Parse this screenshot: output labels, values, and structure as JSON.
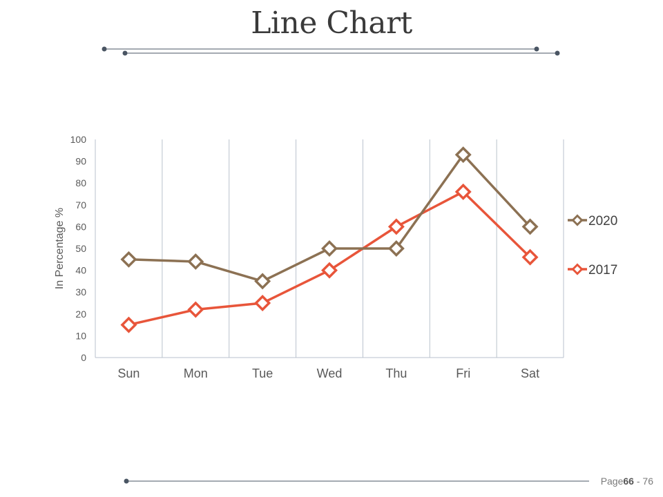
{
  "slide": {
    "title": "Line Chart"
  },
  "footer": {
    "page_label": "Page",
    "page_number": "66",
    "separator": " - ",
    "total_pages": "76"
  },
  "colors": {
    "series_2020": "#8c7153",
    "series_2017": "#e8553a",
    "decor_line": "#4a5563",
    "grid": "#b9c2cc",
    "axis_text": "#595959"
  },
  "chart_data": {
    "type": "line",
    "title": "",
    "xlabel": "",
    "ylabel": "In Percentage %",
    "categories": [
      "Sun",
      "Mon",
      "Tue",
      "Wed",
      "Thu",
      "Fri",
      "Sat"
    ],
    "ylim": [
      0,
      100
    ],
    "yticks": [
      "0",
      "10",
      "20",
      "30",
      "40",
      "50",
      "60",
      "70",
      "80",
      "90",
      "100"
    ],
    "vertical_gridlines": true,
    "legend_position": "right",
    "marker": "diamond",
    "series": [
      {
        "name": "2020",
        "color": "#8c7153",
        "values": [
          45,
          44,
          35,
          50,
          50,
          93,
          60
        ]
      },
      {
        "name": "2017",
        "color": "#e8553a",
        "values": [
          15,
          22,
          25,
          40,
          60,
          76,
          46
        ]
      }
    ]
  }
}
